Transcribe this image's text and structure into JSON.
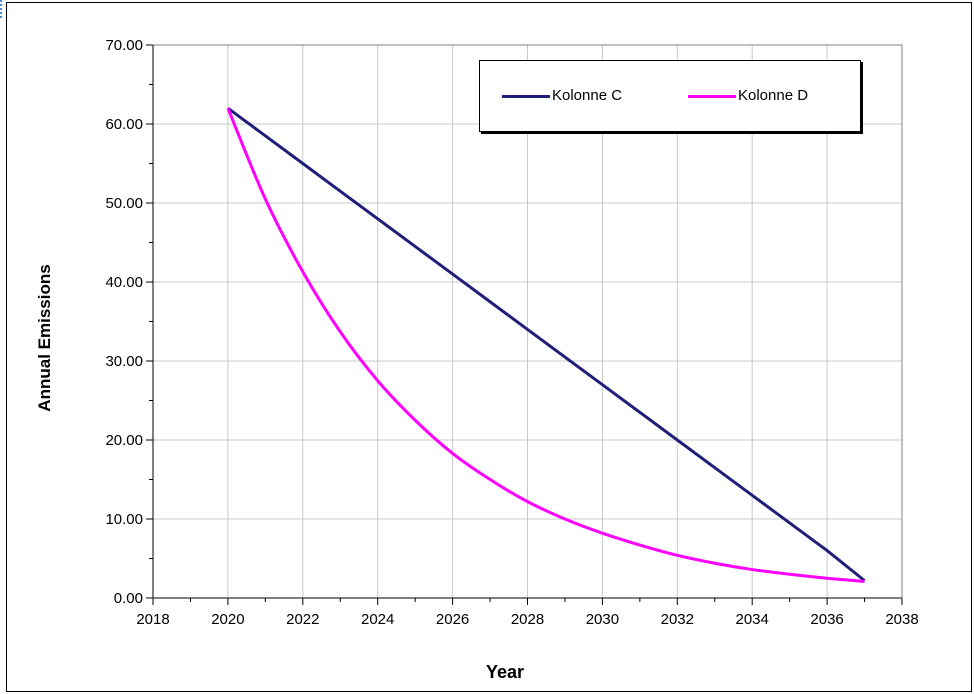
{
  "chart_data": {
    "type": "line",
    "title": "",
    "xlabel": "Year",
    "ylabel": "Annual Emissions",
    "xlim": [
      2018,
      2038
    ],
    "ylim": [
      0,
      70
    ],
    "grid": true,
    "legend_position": "top-right",
    "x_ticks": [
      "2018",
      "2020",
      "2022",
      "2024",
      "2026",
      "2028",
      "2030",
      "2032",
      "2034",
      "2036",
      "2038"
    ],
    "y_ticks": [
      "0.00",
      "10.00",
      "20.00",
      "30.00",
      "40.00",
      "50.00",
      "60.00",
      "70.00"
    ],
    "x": [
      2020,
      2021,
      2022,
      2023,
      2024,
      2025,
      2026,
      2027,
      2028,
      2029,
      2030,
      2031,
      2032,
      2033,
      2034,
      2035,
      2036,
      2037
    ],
    "series": [
      {
        "name": "Kolonne C",
        "color": "#1f1f7a",
        "values": [
          62.0,
          58.5,
          55.0,
          51.5,
          48.0,
          44.5,
          41.0,
          37.5,
          34.0,
          30.5,
          27.0,
          23.5,
          20.0,
          16.5,
          13.0,
          9.5,
          6.0,
          2.2
        ]
      },
      {
        "name": "Kolonne D",
        "color": "#ff00ff",
        "values": [
          62.0,
          50.5,
          41.3,
          33.7,
          27.5,
          22.5,
          18.3,
          15.0,
          12.2,
          10.0,
          8.2,
          6.7,
          5.4,
          4.4,
          3.6,
          3.0,
          2.5,
          2.1
        ]
      }
    ]
  }
}
